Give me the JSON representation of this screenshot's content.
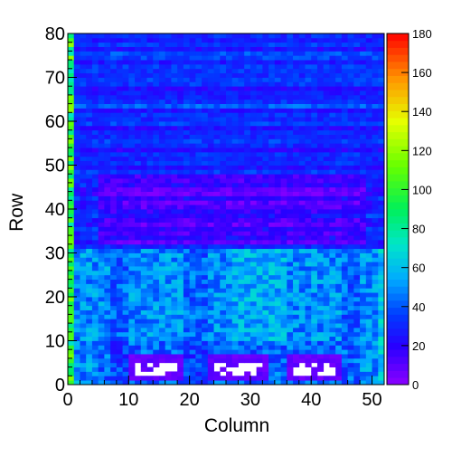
{
  "chart_data": {
    "type": "heatmap",
    "title": "",
    "xlabel": "Column",
    "ylabel": "Row",
    "xlim": [
      0,
      52
    ],
    "ylim": [
      0,
      80
    ],
    "n_columns": 52,
    "n_rows": 80,
    "x_ticks": [
      0,
      10,
      20,
      30,
      40,
      50
    ],
    "y_ticks": [
      0,
      10,
      20,
      30,
      40,
      50,
      60,
      70,
      80
    ],
    "colorbar": {
      "min": 0,
      "max": 180,
      "ticks": [
        0,
        20,
        40,
        60,
        80,
        100,
        120,
        140,
        160,
        180
      ],
      "colormap": "rainbow-violet-to-red"
    },
    "description_regions": [
      {
        "rows": [
          31,
          80
        ],
        "typical_value": 28,
        "note": "upper region mostly blue (20-40)"
      },
      {
        "rows": [
          0,
          31
        ],
        "typical_value": 50,
        "note": "lower region cyan/green (40-70)"
      },
      {
        "rows": [
          32,
          48
        ],
        "cols": [
          5,
          49
        ],
        "typical_value": 18,
        "note": "darker band"
      },
      {
        "rows": [
          0,
          80
        ],
        "cols": [
          0,
          1
        ],
        "typical_value": 90,
        "note": "left edge column higher values"
      }
    ],
    "empty_regions": [
      {
        "cols": [
          11,
          18
        ],
        "rows": [
          2,
          5
        ]
      },
      {
        "cols": [
          24,
          32
        ],
        "rows": [
          2,
          5
        ]
      },
      {
        "cols": [
          37,
          44
        ],
        "rows": [
          2,
          5
        ]
      }
    ],
    "empty_region_borders": [
      {
        "cols": [
          10,
          19
        ],
        "rows": [
          1,
          7
        ]
      },
      {
        "cols": [
          23,
          33
        ],
        "rows": [
          1,
          7
        ]
      },
      {
        "cols": [
          36,
          45
        ],
        "rows": [
          1,
          7
        ]
      }
    ]
  }
}
